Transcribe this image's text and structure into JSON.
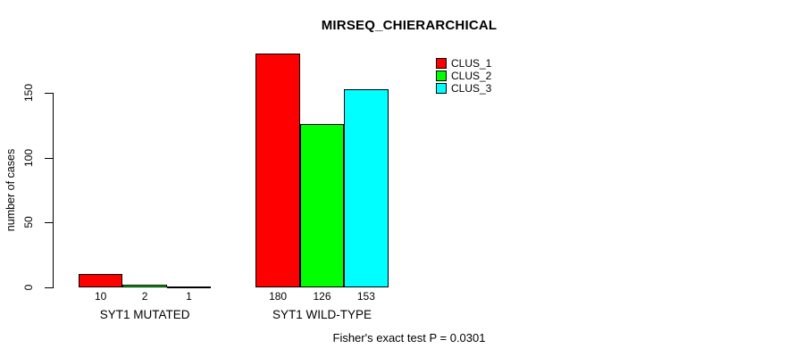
{
  "chart_data": {
    "type": "bar",
    "title": "MIRSEQ_CHIERARCHICAL",
    "ylabel": "number of cases",
    "xlabel": "",
    "yticks": [
      0,
      50,
      100,
      150
    ],
    "ylim": [
      0,
      185
    ],
    "grid": false,
    "legend_position": "top-right-inside",
    "bar_border_color": "#000000",
    "background_color": "#ffffff",
    "categories": [
      "SYT1 MUTATED",
      "SYT1 WILD-TYPE"
    ],
    "series": [
      {
        "name": "CLUS_1",
        "color": "#ff0000",
        "values": [
          10,
          180
        ]
      },
      {
        "name": "CLUS_2",
        "color": "#00ff00",
        "values": [
          2,
          126
        ]
      },
      {
        "name": "CLUS_3",
        "color": "#00ffff",
        "values": [
          1,
          153
        ]
      }
    ],
    "value_labels_shown": true,
    "annotation": "Fisher's exact test P = 0.0301"
  }
}
